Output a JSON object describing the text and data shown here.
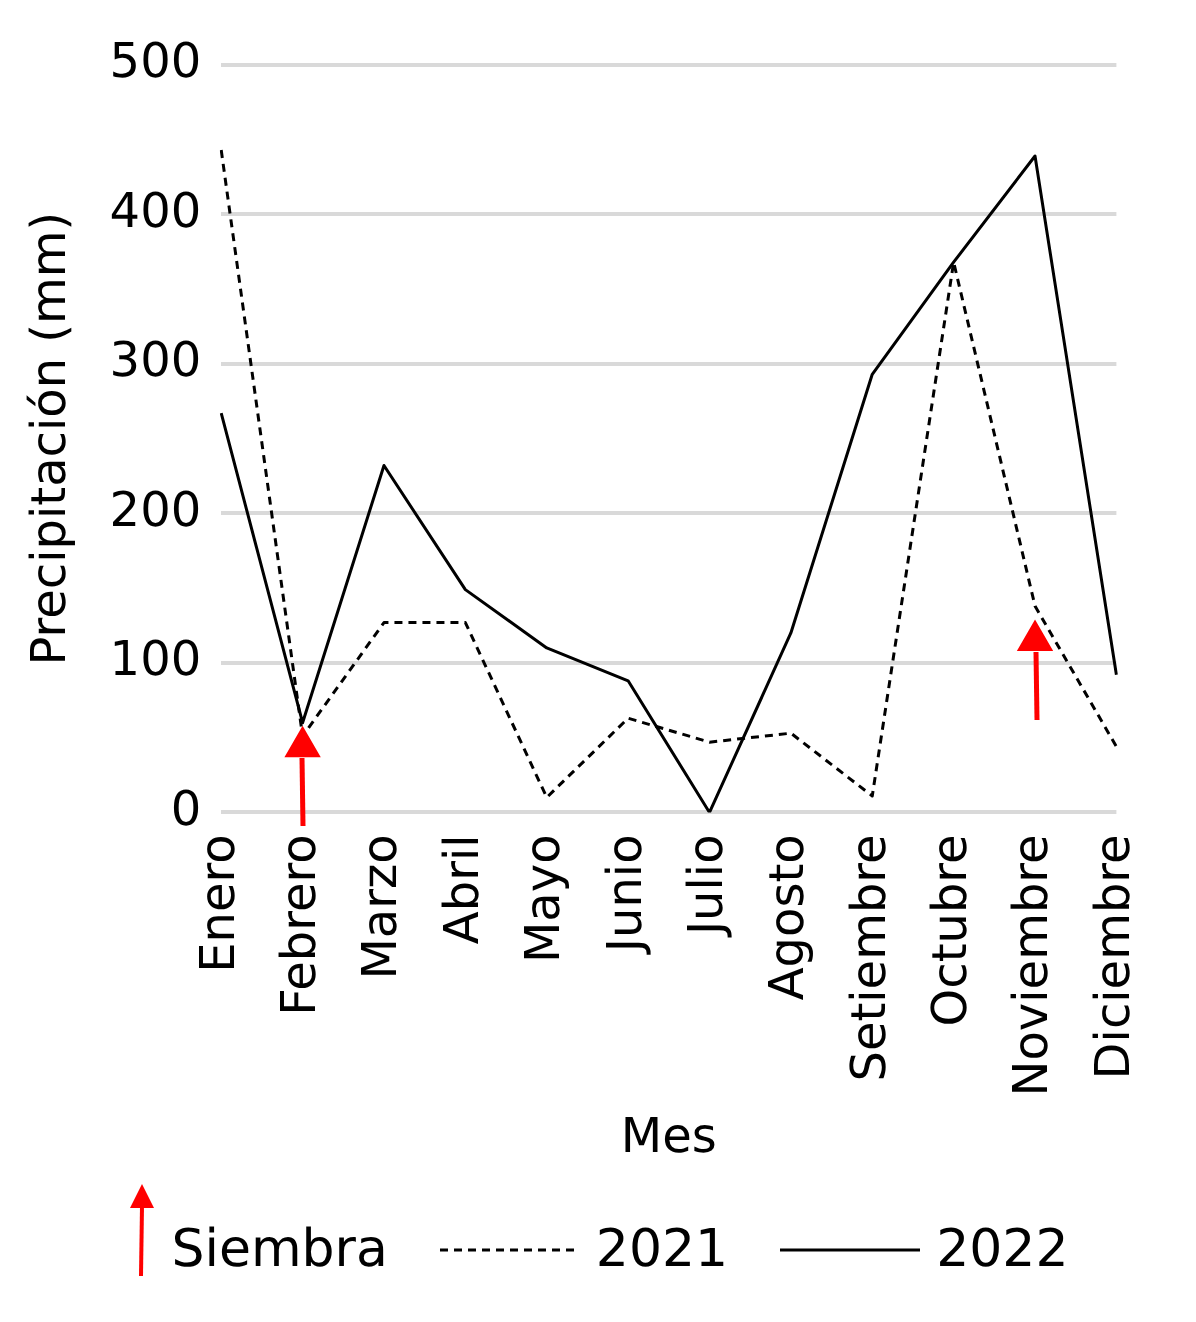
{
  "chart_data": {
    "type": "line",
    "xlabel": "Mes",
    "ylabel": "Precipitación (mm)",
    "categories": [
      "Enero",
      "Febrero",
      "Marzo",
      "Abril",
      "Mayo",
      "Junio",
      "Julio",
      "Agosto",
      "Setiembre",
      "Octubre",
      "Noviembre",
      "Diciembre"
    ],
    "series": [
      {
        "name": "Siembra",
        "type": "scatter",
        "color": "#ff0000",
        "marker": "triangle",
        "x": [
          "Febrero",
          "Noviembre"
        ],
        "values": [
          44,
          115
        ]
      },
      {
        "name": "2021",
        "color": "#000000",
        "line_style": "dashed",
        "values": [
          443,
          51,
          127,
          127,
          10,
          63,
          47,
          53,
          11,
          368,
          138,
          44
        ]
      },
      {
        "name": "2022",
        "color": "#000000",
        "line_style": "solid",
        "values": [
          267,
          60,
          232,
          149,
          110,
          88,
          0,
          120,
          293,
          368,
          439,
          92
        ]
      }
    ],
    "ylim": [
      0,
      500
    ],
    "yticks": [
      0,
      100,
      200,
      300,
      400,
      500
    ],
    "grid": "y",
    "legend": "bottom",
    "marker": "none"
  }
}
